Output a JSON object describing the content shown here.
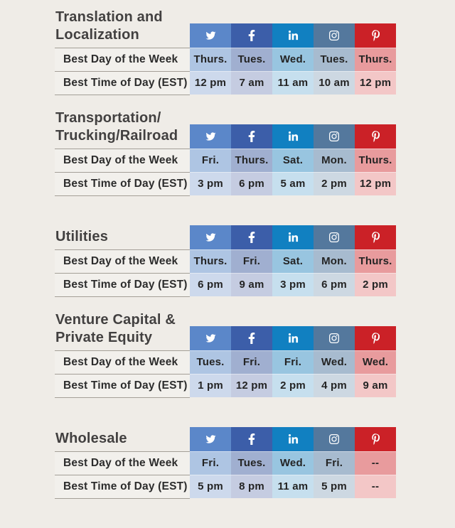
{
  "page": {
    "background": "#efece7",
    "divider_color": "#a49f97",
    "title_color": "#424040",
    "text_color": "#242424"
  },
  "row_labels": {
    "day": "Best Day of the Week",
    "time": "Best Time of Day (EST)"
  },
  "networks": [
    {
      "id": "twitter",
      "label": "Twitter",
      "icon": "twitter-bird-icon",
      "colors": {
        "header": "#5b87c9",
        "day": "#aec5e3",
        "time": "#cdd9ec"
      }
    },
    {
      "id": "facebook",
      "label": "Facebook",
      "icon": "facebook-f-icon",
      "colors": {
        "header": "#3c5ea9",
        "day": "#a0afd0",
        "time": "#c5cce1"
      }
    },
    {
      "id": "linkedin",
      "label": "LinkedIn",
      "icon": "linkedin-in-icon",
      "colors": {
        "header": "#1180c1",
        "day": "#98c5e0",
        "time": "#c6dfee"
      }
    },
    {
      "id": "instagram",
      "label": "Instagram",
      "icon": "instagram-icon",
      "colors": {
        "header": "#54789d",
        "day": "#a7bbcf",
        "time": "#cdd8e2"
      }
    },
    {
      "id": "pinterest",
      "label": "Pinterest",
      "icon": "pinterest-p-icon",
      "colors": {
        "header": "#cb2127",
        "day": "#e89b9d",
        "time": "#f3c7c7"
      }
    }
  ],
  "chart_data": {
    "type": "table",
    "columns": [
      "Twitter",
      "Facebook",
      "LinkedIn",
      "Instagram",
      "Pinterest"
    ],
    "row_headers": [
      "Best Day of the Week",
      "Best Time of Day (EST)"
    ],
    "tables": [
      {
        "title": "Translation and Localization",
        "title_lines": [
          "Translation and",
          "Localization"
        ],
        "best_day": [
          "Thurs.",
          "Tues.",
          "Wed.",
          "Tues.",
          "Thurs."
        ],
        "best_time": [
          "12 pm",
          "7 am",
          "11 am",
          "10 am",
          "12 pm"
        ]
      },
      {
        "title": "Transportation/Trucking/Railroad",
        "title_lines": [
          "Transportation/",
          "Trucking/Railroad"
        ],
        "best_day": [
          "Fri.",
          "Thurs.",
          "Sat.",
          "Mon.",
          "Thurs."
        ],
        "best_time": [
          "3 pm",
          "6 pm",
          "5 am",
          "2 pm",
          "12 pm"
        ]
      },
      {
        "title": "Utilities",
        "title_lines": [
          "Utilities"
        ],
        "best_day": [
          "Thurs.",
          "Fri.",
          "Sat.",
          "Mon.",
          "Thurs."
        ],
        "best_time": [
          "6 pm",
          "9 am",
          "3 pm",
          "6 pm",
          "2 pm"
        ]
      },
      {
        "title": "Venture Capital & Private Equity",
        "title_lines": [
          "Venture Capital &",
          "Private Equity"
        ],
        "best_day": [
          "Tues.",
          "Fri.",
          "Fri.",
          "Wed.",
          "Wed."
        ],
        "best_time": [
          "1 pm",
          "12 pm",
          "2 pm",
          "4 pm",
          "9 am"
        ]
      },
      {
        "title": "Wholesale",
        "title_lines": [
          "Wholesale"
        ],
        "best_day": [
          "Fri.",
          "Tues.",
          "Wed.",
          "Fri.",
          "--"
        ],
        "best_time": [
          "5 pm",
          "8 pm",
          "11 am",
          "5 pm",
          "--"
        ]
      }
    ]
  }
}
